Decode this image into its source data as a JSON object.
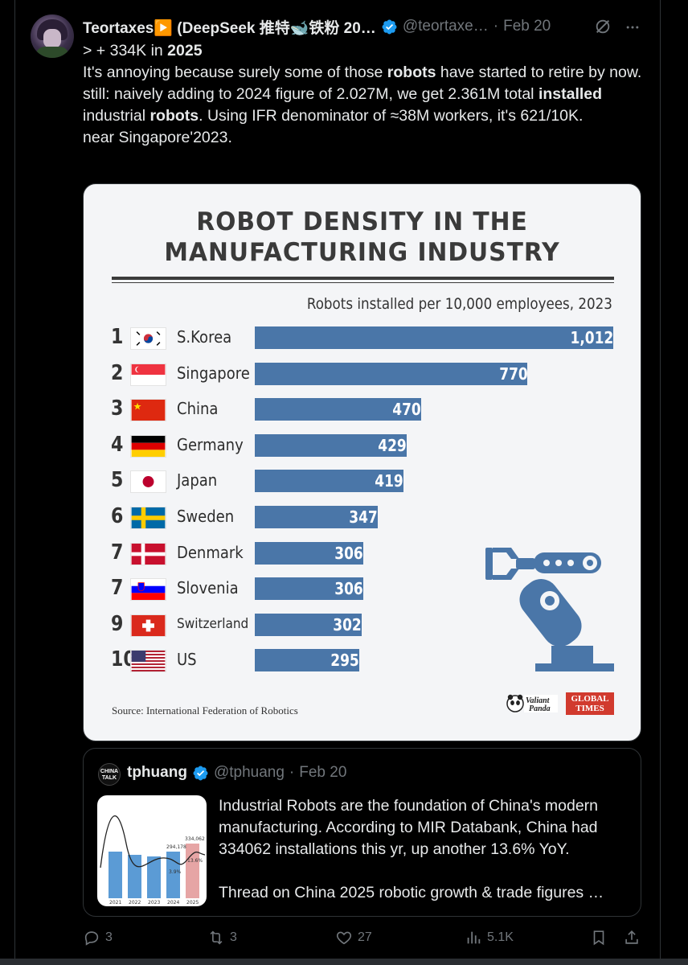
{
  "tweet": {
    "display_name": "Teortaxes▶️ (DeepSeek 推特🐋铁粉 20…",
    "handle": "@teortaxe…",
    "separator": "·",
    "date": "Feb 20",
    "text_lines": [
      "> + 334K in ",
      "2025",
      "It's annoying because surely some of those ",
      "robots",
      " have started to retire by now. still: naively adding to 2024 figure of 2.027M, we get 2.361M total ",
      "installed",
      " industrial ",
      "robots",
      ". Using IFR denominator of ≈38M workers, it's 621/10K.",
      "near Singapore'2023."
    ]
  },
  "chart_data": {
    "type": "bar",
    "title": "ROBOT DENSITY IN THE MANUFACTURING INDUSTRY",
    "title_line1": "ROBOT DENSITY IN THE",
    "title_line2": "MANUFACTURING INDUSTRY",
    "subtitle": "Robots installed per 10,000 employees, 2023",
    "orientation": "horizontal",
    "ranks": [
      "1",
      "2",
      "3",
      "4",
      "5",
      "6",
      "7",
      "7",
      "9",
      "10"
    ],
    "categories": [
      "S.Korea",
      "Singapore",
      "China",
      "Germany",
      "Japan",
      "Sweden",
      "Denmark",
      "Slovenia",
      "Switzerland",
      "US"
    ],
    "values": [
      1012,
      770,
      470,
      429,
      419,
      347,
      306,
      306,
      302,
      295
    ],
    "value_labels": [
      "1,012",
      "770",
      "470",
      "429",
      "419",
      "347",
      "306",
      "306",
      "302",
      "295"
    ],
    "bar_color": "#4a76a8",
    "xlim": [
      0,
      1012
    ],
    "grid": false,
    "source": "Source: International Federation of Robotics",
    "logo_1": "Valiant Panda",
    "logo_2_line1": "GLOBAL",
    "logo_2_line2": "TIMES"
  },
  "quote": {
    "avatar_text": "CHINA TALK",
    "display_name": "tphuang",
    "handle": "@tphuang",
    "separator": "·",
    "date": "Feb 20",
    "paragraph1": "Industrial Robots are the foundation of China's modern manufacturing. According to MIR Databank, China had 334062 installations this yr, up another 13.6% YoY.",
    "paragraph2": "Thread on China 2025 robotic growth & trade figures …",
    "thumb_chart": {
      "categories": [
        "2021",
        "2022",
        "2023",
        "2024",
        "2025"
      ],
      "labels": [
        "294,178",
        "334,062"
      ],
      "pct_labels": [
        "3.9%",
        "13.6%"
      ]
    }
  },
  "actions": {
    "replies": "3",
    "reposts": "3",
    "likes": "27",
    "views": "5.1K"
  },
  "colors": {
    "background": "#000000",
    "text": "#e7e9ea",
    "muted": "#71767b",
    "verified": "#1d9bf0",
    "bar": "#4a76a8"
  }
}
